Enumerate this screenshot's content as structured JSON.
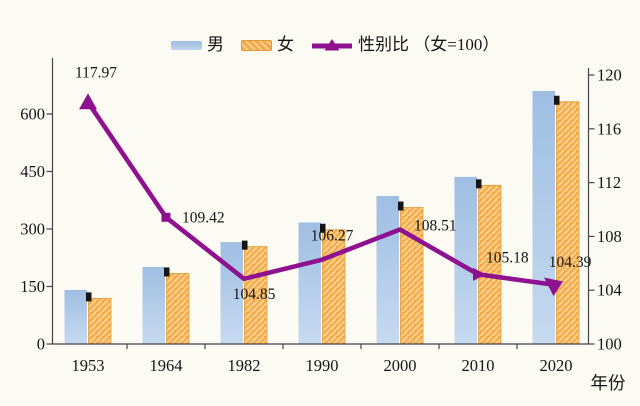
{
  "legend": {
    "male_label": "男",
    "female_label": "女",
    "ratio_label": "性别比 （女=100）"
  },
  "x_axis_title": "年份",
  "colors": {
    "male_bar_top": "#9FBEE2",
    "male_bar_bottom": "#C6DAF0",
    "female_bar": "#F2AB4A",
    "female_hatch": "#F9CF8E",
    "female_border": "#E09B35",
    "ratio_line": "#8E1190",
    "bar_top_marker": "#151515",
    "axis": "#454545",
    "text": "#151515",
    "background": "#FBFAF3"
  },
  "chart_data": {
    "type": "bar+line combo",
    "title": "",
    "categories": [
      "1953",
      "1964",
      "1982",
      "1990",
      "2000",
      "2010",
      "2020"
    ],
    "series": [
      {
        "name": "男",
        "type": "bar",
        "axis": "left",
        "values": [
          141,
          201,
          266,
          317,
          386,
          436,
          660
        ]
      },
      {
        "name": "女",
        "type": "bar",
        "axis": "left",
        "values": [
          119,
          184,
          254,
          298,
          356,
          414,
          632
        ]
      },
      {
        "name": "性别比（女=100）",
        "type": "line",
        "axis": "right",
        "values": [
          117.97,
          109.42,
          104.85,
          106.27,
          108.51,
          105.18,
          104.39
        ],
        "point_labels": [
          "117.97",
          "109.42",
          "104.85",
          "106.27",
          "108.51",
          "105.18",
          "104.39"
        ]
      }
    ],
    "left_axis": {
      "ticks": [
        0,
        150,
        300,
        450,
        600
      ],
      "range": [
        0,
        740
      ]
    },
    "right_axis": {
      "ticks": [
        100,
        104,
        108,
        112,
        116,
        120
      ],
      "range": [
        100,
        121
      ]
    },
    "xlabel": "年份",
    "ylabel": "",
    "grid": false,
    "legend_position": "top-center"
  }
}
